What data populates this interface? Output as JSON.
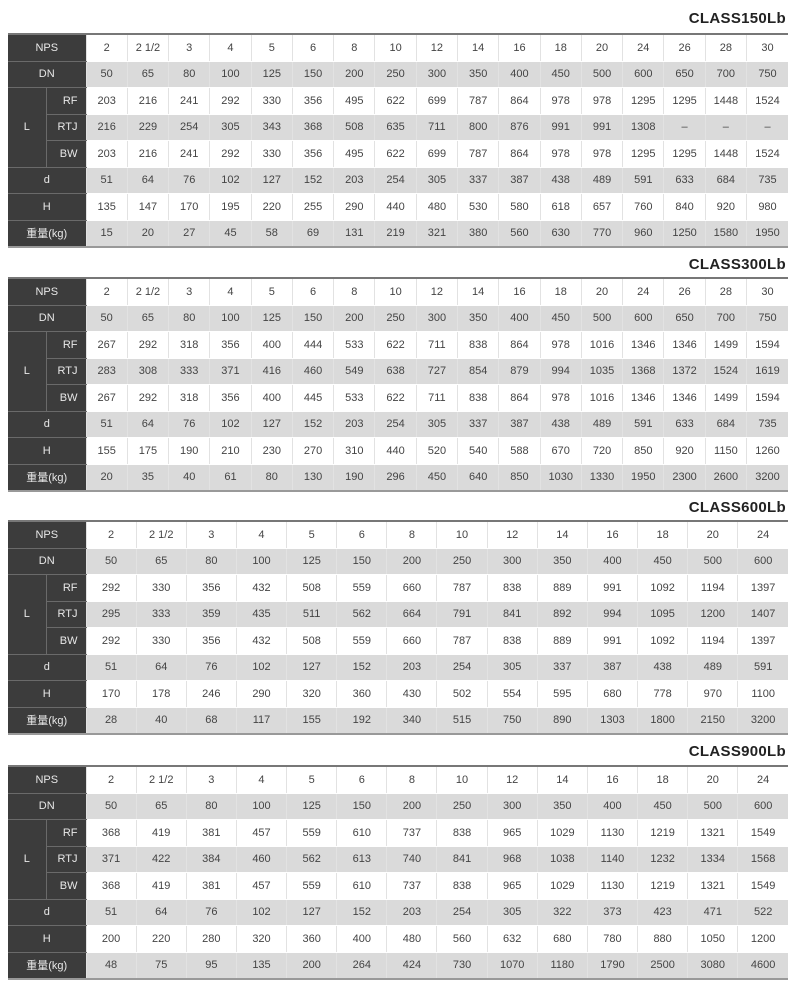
{
  "row_labels": {
    "nps": "NPS",
    "dn": "DN",
    "l": "L",
    "rf": "RF",
    "rtj": "RTJ",
    "bw": "BW",
    "d": "d",
    "h": "H",
    "weight": "重量(kg)"
  },
  "tables": [
    {
      "title": "CLASS150Lb",
      "nps": [
        "2",
        "2 1/2",
        "3",
        "4",
        "5",
        "6",
        "8",
        "10",
        "12",
        "14",
        "16",
        "18",
        "20",
        "24",
        "26",
        "28",
        "30"
      ],
      "dn": [
        "50",
        "65",
        "80",
        "100",
        "125",
        "150",
        "200",
        "250",
        "300",
        "350",
        "400",
        "450",
        "500",
        "600",
        "650",
        "700",
        "750"
      ],
      "rf": [
        "203",
        "216",
        "241",
        "292",
        "330",
        "356",
        "495",
        "622",
        "699",
        "787",
        "864",
        "978",
        "978",
        "1295",
        "1295",
        "1448",
        "1524"
      ],
      "rtj": [
        "216",
        "229",
        "254",
        "305",
        "343",
        "368",
        "508",
        "635",
        "711",
        "800",
        "876",
        "991",
        "991",
        "1308",
        "–",
        "–",
        "–"
      ],
      "bw": [
        "203",
        "216",
        "241",
        "292",
        "330",
        "356",
        "495",
        "622",
        "699",
        "787",
        "864",
        "978",
        "978",
        "1295",
        "1295",
        "1448",
        "1524"
      ],
      "d": [
        "51",
        "64",
        "76",
        "102",
        "127",
        "152",
        "203",
        "254",
        "305",
        "337",
        "387",
        "438",
        "489",
        "591",
        "633",
        "684",
        "735"
      ],
      "h": [
        "135",
        "147",
        "170",
        "195",
        "220",
        "255",
        "290",
        "440",
        "480",
        "530",
        "580",
        "618",
        "657",
        "760",
        "840",
        "920",
        "980"
      ],
      "weight": [
        "15",
        "20",
        "27",
        "45",
        "58",
        "69",
        "131",
        "219",
        "321",
        "380",
        "560",
        "630",
        "770",
        "960",
        "1250",
        "1580",
        "1950"
      ]
    },
    {
      "title": "CLASS300Lb",
      "nps": [
        "2",
        "2 1/2",
        "3",
        "4",
        "5",
        "6",
        "8",
        "10",
        "12",
        "14",
        "16",
        "18",
        "20",
        "24",
        "26",
        "28",
        "30"
      ],
      "dn": [
        "50",
        "65",
        "80",
        "100",
        "125",
        "150",
        "200",
        "250",
        "300",
        "350",
        "400",
        "450",
        "500",
        "600",
        "650",
        "700",
        "750"
      ],
      "rf": [
        "267",
        "292",
        "318",
        "356",
        "400",
        "444",
        "533",
        "622",
        "711",
        "838",
        "864",
        "978",
        "1016",
        "1346",
        "1346",
        "1499",
        "1594"
      ],
      "rtj": [
        "283",
        "308",
        "333",
        "371",
        "416",
        "460",
        "549",
        "638",
        "727",
        "854",
        "879",
        "994",
        "1035",
        "1368",
        "1372",
        "1524",
        "1619"
      ],
      "bw": [
        "267",
        "292",
        "318",
        "356",
        "400",
        "445",
        "533",
        "622",
        "711",
        "838",
        "864",
        "978",
        "1016",
        "1346",
        "1346",
        "1499",
        "1594"
      ],
      "d": [
        "51",
        "64",
        "76",
        "102",
        "127",
        "152",
        "203",
        "254",
        "305",
        "337",
        "387",
        "438",
        "489",
        "591",
        "633",
        "684",
        "735"
      ],
      "h": [
        "155",
        "175",
        "190",
        "210",
        "230",
        "270",
        "310",
        "440",
        "520",
        "540",
        "588",
        "670",
        "720",
        "850",
        "920",
        "1150",
        "1260"
      ],
      "weight": [
        "20",
        "35",
        "40",
        "61",
        "80",
        "130",
        "190",
        "296",
        "450",
        "640",
        "850",
        "1030",
        "1330",
        "1950",
        "2300",
        "2600",
        "3200"
      ]
    },
    {
      "title": "CLASS600Lb",
      "nps": [
        "2",
        "2 1/2",
        "3",
        "4",
        "5",
        "6",
        "8",
        "10",
        "12",
        "14",
        "16",
        "18",
        "20",
        "24"
      ],
      "dn": [
        "50",
        "65",
        "80",
        "100",
        "125",
        "150",
        "200",
        "250",
        "300",
        "350",
        "400",
        "450",
        "500",
        "600"
      ],
      "rf": [
        "292",
        "330",
        "356",
        "432",
        "508",
        "559",
        "660",
        "787",
        "838",
        "889",
        "991",
        "1092",
        "1194",
        "1397"
      ],
      "rtj": [
        "295",
        "333",
        "359",
        "435",
        "511",
        "562",
        "664",
        "791",
        "841",
        "892",
        "994",
        "1095",
        "1200",
        "1407"
      ],
      "bw": [
        "292",
        "330",
        "356",
        "432",
        "508",
        "559",
        "660",
        "787",
        "838",
        "889",
        "991",
        "1092",
        "1194",
        "1397"
      ],
      "d": [
        "51",
        "64",
        "76",
        "102",
        "127",
        "152",
        "203",
        "254",
        "305",
        "337",
        "387",
        "438",
        "489",
        "591"
      ],
      "h": [
        "170",
        "178",
        "246",
        "290",
        "320",
        "360",
        "430",
        "502",
        "554",
        "595",
        "680",
        "778",
        "970",
        "1100"
      ],
      "weight": [
        "28",
        "40",
        "68",
        "117",
        "155",
        "192",
        "340",
        "515",
        "750",
        "890",
        "1303",
        "1800",
        "2150",
        "3200"
      ]
    },
    {
      "title": "CLASS900Lb",
      "nps": [
        "2",
        "2 1/2",
        "3",
        "4",
        "5",
        "6",
        "8",
        "10",
        "12",
        "14",
        "16",
        "18",
        "20",
        "24"
      ],
      "dn": [
        "50",
        "65",
        "80",
        "100",
        "125",
        "150",
        "200",
        "250",
        "300",
        "350",
        "400",
        "450",
        "500",
        "600"
      ],
      "rf": [
        "368",
        "419",
        "381",
        "457",
        "559",
        "610",
        "737",
        "838",
        "965",
        "1029",
        "1130",
        "1219",
        "1321",
        "1549"
      ],
      "rtj": [
        "371",
        "422",
        "384",
        "460",
        "562",
        "613",
        "740",
        "841",
        "968",
        "1038",
        "1140",
        "1232",
        "1334",
        "1568"
      ],
      "bw": [
        "368",
        "419",
        "381",
        "457",
        "559",
        "610",
        "737",
        "838",
        "965",
        "1029",
        "1130",
        "1219",
        "1321",
        "1549"
      ],
      "d": [
        "51",
        "64",
        "76",
        "102",
        "127",
        "152",
        "203",
        "254",
        "305",
        "322",
        "373",
        "423",
        "471",
        "522"
      ],
      "h": [
        "200",
        "220",
        "280",
        "320",
        "360",
        "400",
        "480",
        "560",
        "632",
        "680",
        "780",
        "880",
        "1050",
        "1200"
      ],
      "weight": [
        "48",
        "75",
        "95",
        "135",
        "200",
        "264",
        "424",
        "730",
        "1070",
        "1180",
        "1790",
        "2500",
        "3080",
        "4600"
      ]
    }
  ]
}
